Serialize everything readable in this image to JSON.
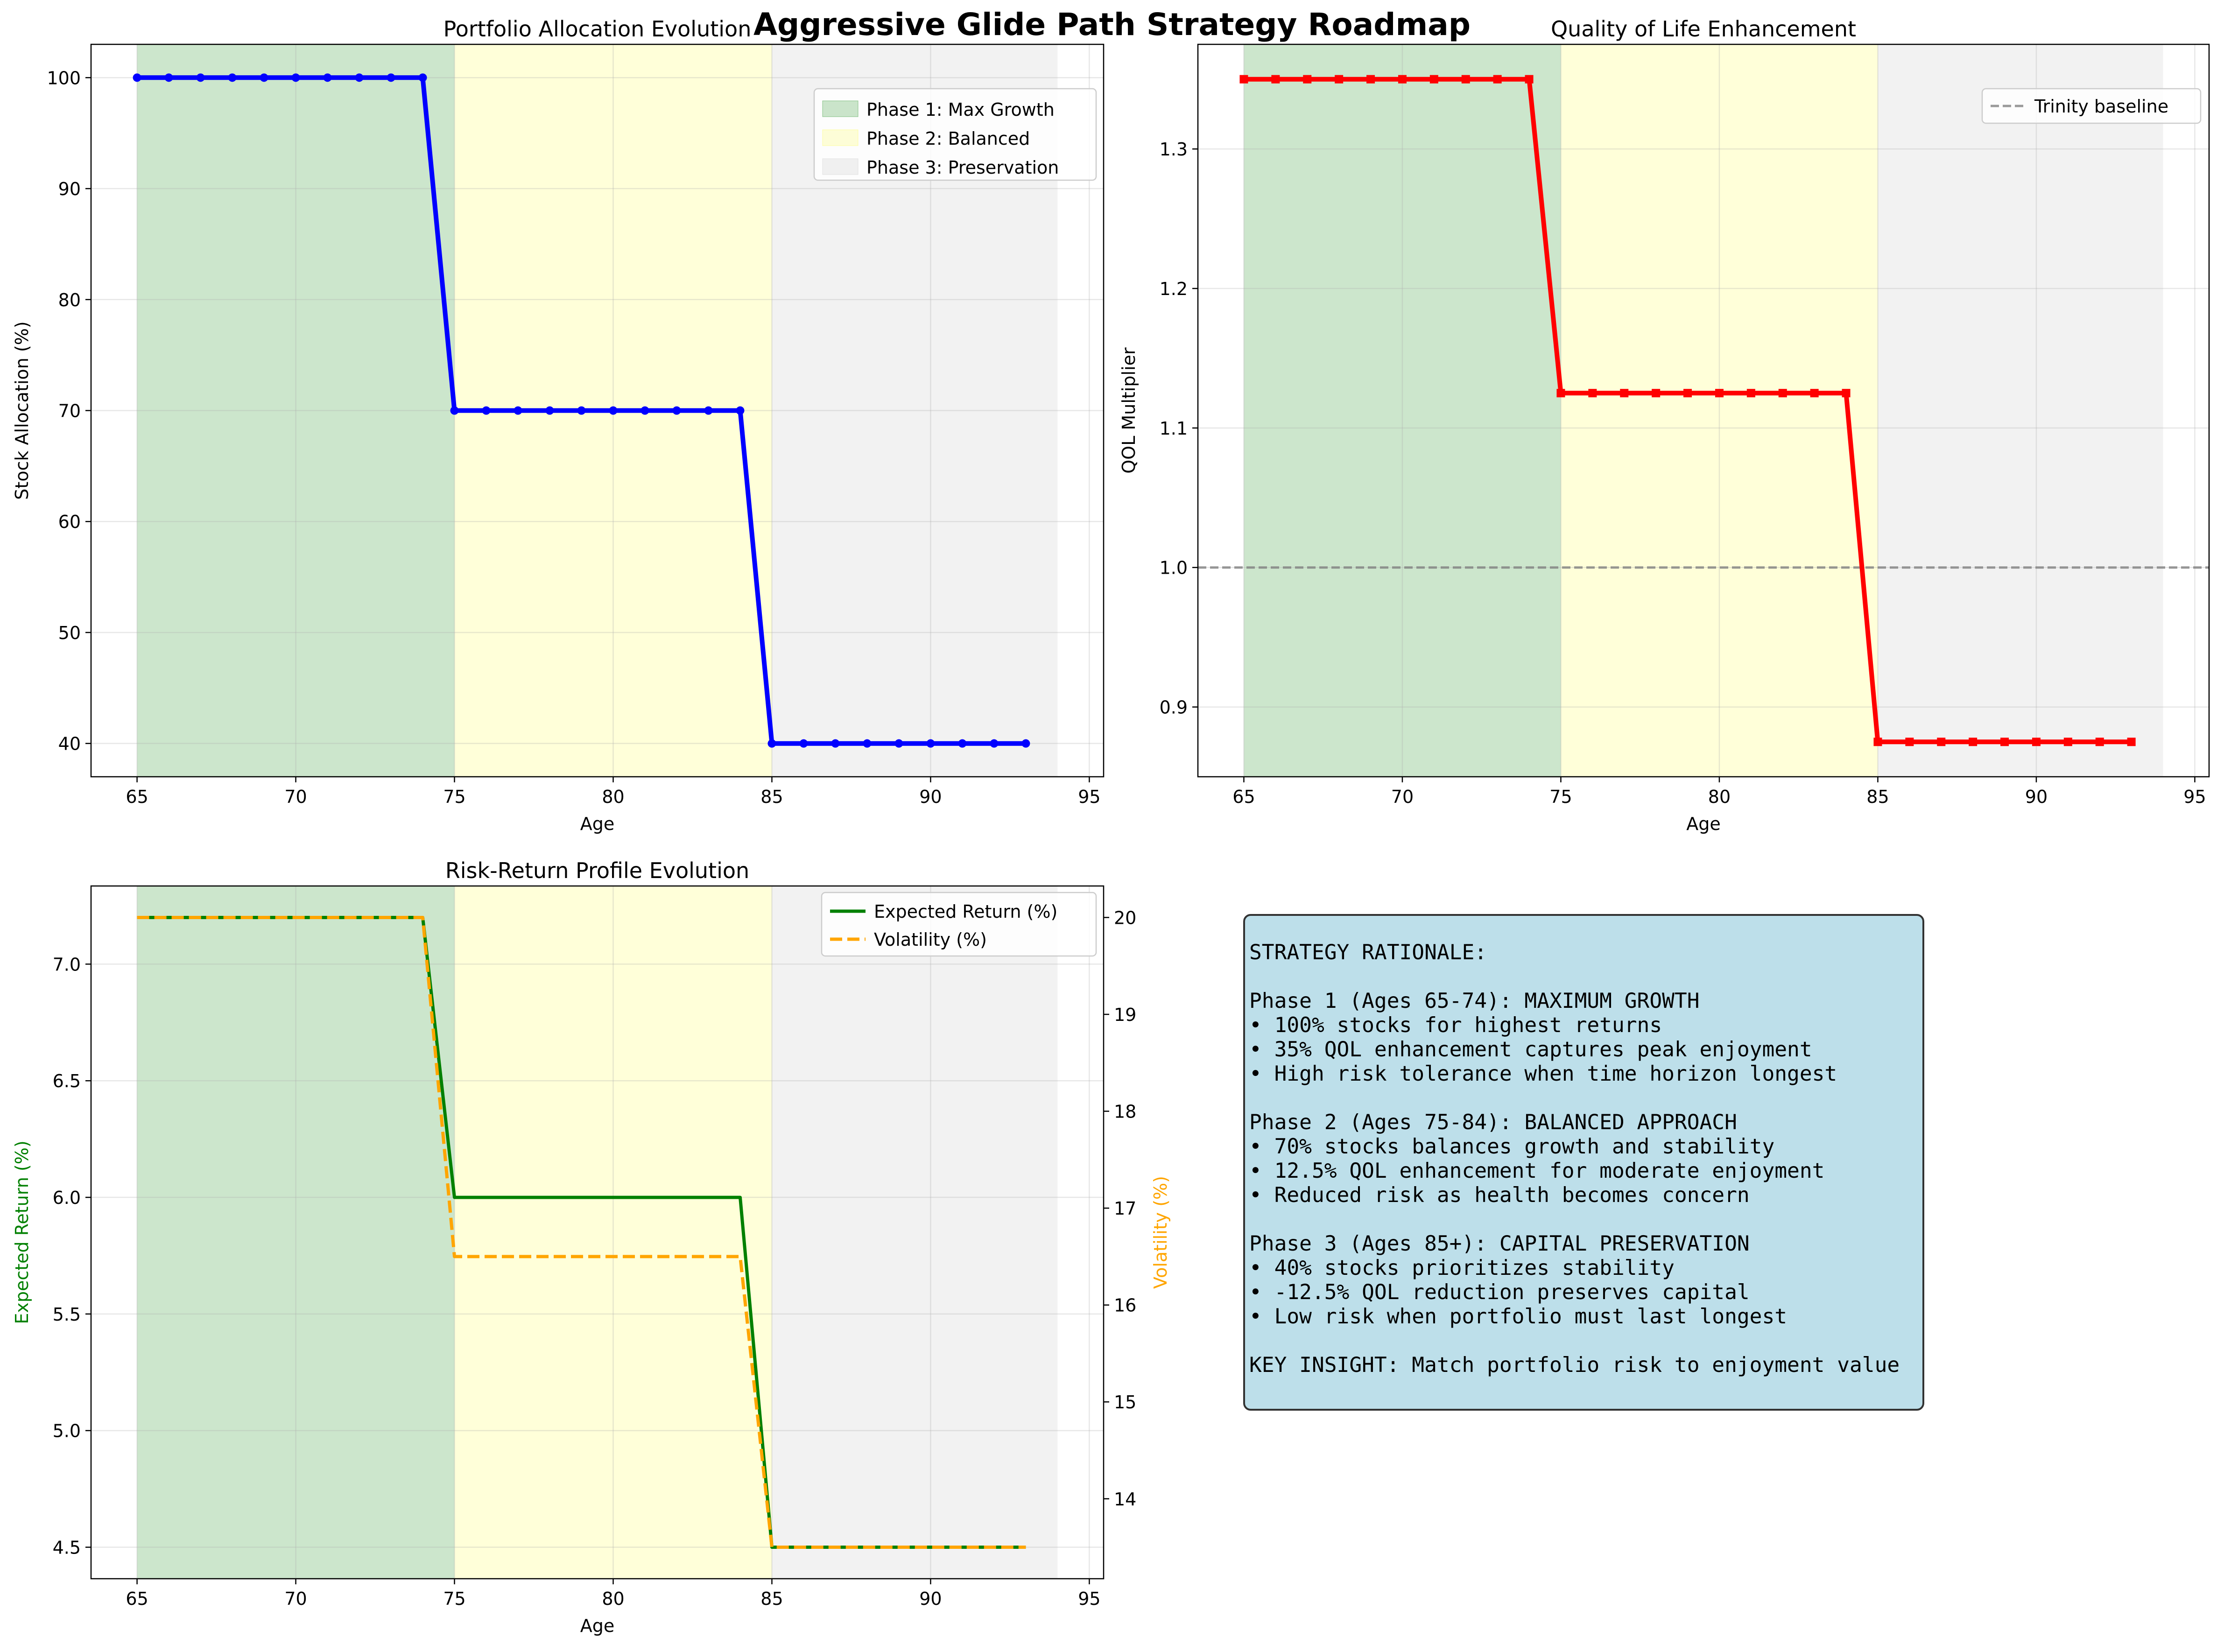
{
  "figure": {
    "suptitle": "Aggressive Glide Path Strategy Roadmap"
  },
  "colors": {
    "phase1": "#008000",
    "phase2": "#ffff00",
    "phase3": "#d3d3d3",
    "allocation_line": "#0000ff",
    "qol_line": "#ff0000",
    "return_line": "#008000",
    "volatility_line": "#ffa500",
    "baseline": "#808080",
    "info_box": "#add8e6"
  },
  "phases": [
    {
      "label": "Phase 1: Max Growth",
      "start": 65,
      "end": 75,
      "color": "#008000",
      "alpha": 0.2
    },
    {
      "label": "Phase 2: Balanced",
      "start": 75,
      "end": 85,
      "color": "#ffff00",
      "alpha": 0.15
    },
    {
      "label": "Phase 3: Preservation",
      "start": 85,
      "end": 94,
      "color": "#d3d3d3",
      "alpha": 0.3
    }
  ],
  "chart_data": [
    {
      "id": "allocation",
      "type": "line",
      "title": "Portfolio Allocation Evolution",
      "xlabel": "Age",
      "ylabel": "Stock Allocation (%)",
      "xlim": [
        63.55,
        95.45
      ],
      "ylim": [
        37,
        103
      ],
      "xticks": [
        65,
        70,
        75,
        80,
        85,
        90,
        95
      ],
      "yticks": [
        40,
        50,
        60,
        70,
        80,
        90,
        100
      ],
      "grid": true,
      "legend_position": "upper-right",
      "x": [
        65,
        66,
        67,
        68,
        69,
        70,
        71,
        72,
        73,
        74,
        75,
        76,
        77,
        78,
        79,
        80,
        81,
        82,
        83,
        84,
        85,
        86,
        87,
        88,
        89,
        90,
        91,
        92,
        93
      ],
      "series": [
        {
          "values": [
            100,
            100,
            100,
            100,
            100,
            100,
            100,
            100,
            100,
            100,
            70,
            70,
            70,
            70,
            70,
            70,
            70,
            70,
            70,
            70,
            40,
            40,
            40,
            40,
            40,
            40,
            40,
            40,
            40
          ],
          "color": "#0000ff",
          "marker": "circle",
          "linewidth": 3
        }
      ]
    },
    {
      "id": "qol",
      "type": "line",
      "title": "Quality of Life Enhancement",
      "xlabel": "Age",
      "ylabel": "QOL Multiplier",
      "xlim": [
        63.55,
        95.45
      ],
      "ylim": [
        0.85,
        1.375
      ],
      "xticks": [
        65,
        70,
        75,
        80,
        85,
        90,
        95
      ],
      "yticks": [
        0.9,
        1.0,
        1.1,
        1.2,
        1.3
      ],
      "ytick_labels": [
        "0.9",
        "1.0",
        "1.1",
        "1.2",
        "1.3"
      ],
      "grid": true,
      "legend_position": "upper-right",
      "baseline": {
        "value": 1.0,
        "label": "Trinity baseline"
      },
      "x": [
        65,
        66,
        67,
        68,
        69,
        70,
        71,
        72,
        73,
        74,
        75,
        76,
        77,
        78,
        79,
        80,
        81,
        82,
        83,
        84,
        85,
        86,
        87,
        88,
        89,
        90,
        91,
        92,
        93
      ],
      "series": [
        {
          "values": [
            1.35,
            1.35,
            1.35,
            1.35,
            1.35,
            1.35,
            1.35,
            1.35,
            1.35,
            1.35,
            1.125,
            1.125,
            1.125,
            1.125,
            1.125,
            1.125,
            1.125,
            1.125,
            1.125,
            1.125,
            0.875,
            0.875,
            0.875,
            0.875,
            0.875,
            0.875,
            0.875,
            0.875,
            0.875
          ],
          "color": "#ff0000",
          "marker": "square",
          "linewidth": 3
        }
      ]
    },
    {
      "id": "riskreturn",
      "type": "line",
      "title": "Risk-Return Profile Evolution",
      "xlabel": "Age",
      "ylabel": "Expected Return (%)",
      "ylabel_right": "Volatility (%)",
      "xlim": [
        63.55,
        95.45
      ],
      "ylim": [
        4.365,
        7.335
      ],
      "ylim_right": [
        13.175,
        20.325
      ],
      "xticks": [
        65,
        70,
        75,
        80,
        85,
        90,
        95
      ],
      "yticks": [
        4.5,
        5.0,
        5.5,
        6.0,
        6.5,
        7.0
      ],
      "ytick_labels": [
        "4.5",
        "5.0",
        "5.5",
        "6.0",
        "6.5",
        "7.0"
      ],
      "yticks_right": [
        14,
        15,
        16,
        17,
        18,
        19,
        20
      ],
      "grid": true,
      "legend_position": "upper-right",
      "x": [
        65,
        66,
        67,
        68,
        69,
        70,
        71,
        72,
        73,
        74,
        75,
        76,
        77,
        78,
        79,
        80,
        81,
        82,
        83,
        84,
        85,
        86,
        87,
        88,
        89,
        90,
        91,
        92,
        93
      ],
      "series": [
        {
          "name": "Expected Return (%)",
          "axis": "left",
          "color": "#008000",
          "dash": false,
          "linewidth": 2,
          "values": [
            7.2,
            7.2,
            7.2,
            7.2,
            7.2,
            7.2,
            7.2,
            7.2,
            7.2,
            7.2,
            6.0,
            6.0,
            6.0,
            6.0,
            6.0,
            6.0,
            6.0,
            6.0,
            6.0,
            6.0,
            4.5,
            4.5,
            4.5,
            4.5,
            4.5,
            4.5,
            4.5,
            4.5,
            4.5
          ]
        },
        {
          "name": "Volatility (%)",
          "axis": "right",
          "color": "#ffa500",
          "dash": true,
          "linewidth": 2,
          "values": [
            20,
            20,
            20,
            20,
            20,
            20,
            20,
            20,
            20,
            20,
            16.5,
            16.5,
            16.5,
            16.5,
            16.5,
            16.5,
            16.5,
            16.5,
            16.5,
            16.5,
            13.5,
            13.5,
            13.5,
            13.5,
            13.5,
            13.5,
            13.5,
            13.5,
            13.5
          ]
        }
      ]
    }
  ],
  "rationale": {
    "lines": [
      "STRATEGY RATIONALE:",
      "",
      "Phase 1 (Ages 65-74): MAXIMUM GROWTH",
      "• 100% stocks for highest returns",
      "• 35% QOL enhancement captures peak enjoyment",
      "• High risk tolerance when time horizon longest",
      "",
      "Phase 2 (Ages 75-84): BALANCED APPROACH",
      "• 70% stocks balances growth and stability",
      "• 12.5% QOL enhancement for moderate enjoyment",
      "• Reduced risk as health becomes concern",
      "",
      "Phase 3 (Ages 85+): CAPITAL PRESERVATION",
      "• 40% stocks prioritizes stability",
      "• -12.5% QOL reduction preserves capital",
      "• Low risk when portfolio must last longest",
      "",
      "KEY INSIGHT: Match portfolio risk to enjoyment value"
    ]
  }
}
